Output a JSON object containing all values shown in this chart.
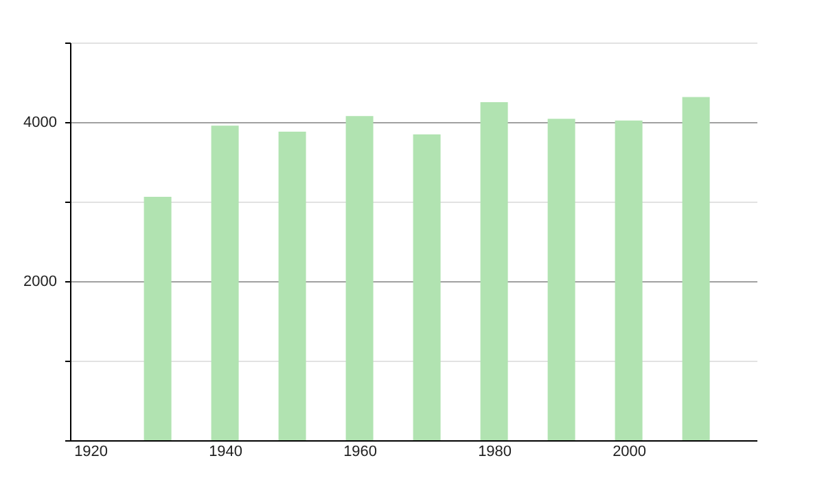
{
  "chart_data": {
    "type": "bar",
    "x": [
      1930,
      1940,
      1950,
      1960,
      1970,
      1980,
      1990,
      2000,
      2010
    ],
    "values": [
      3060,
      3955,
      3880,
      4075,
      3845,
      4250,
      4040,
      4020,
      4315
    ],
    "color": "#b1e3b1",
    "xlim": [
      1918,
      2018
    ],
    "xticks": [
      1920,
      1940,
      1960,
      1980,
      2000
    ],
    "ylim": [
      0,
      5000
    ],
    "yticks": [
      {
        "value": 0,
        "label": null
      },
      {
        "value": 1000,
        "label": null
      },
      2000,
      {
        "value": 3000,
        "label": null
      },
      4000,
      {
        "value": 5000,
        "label": null
      }
    ],
    "grid": "y"
  }
}
